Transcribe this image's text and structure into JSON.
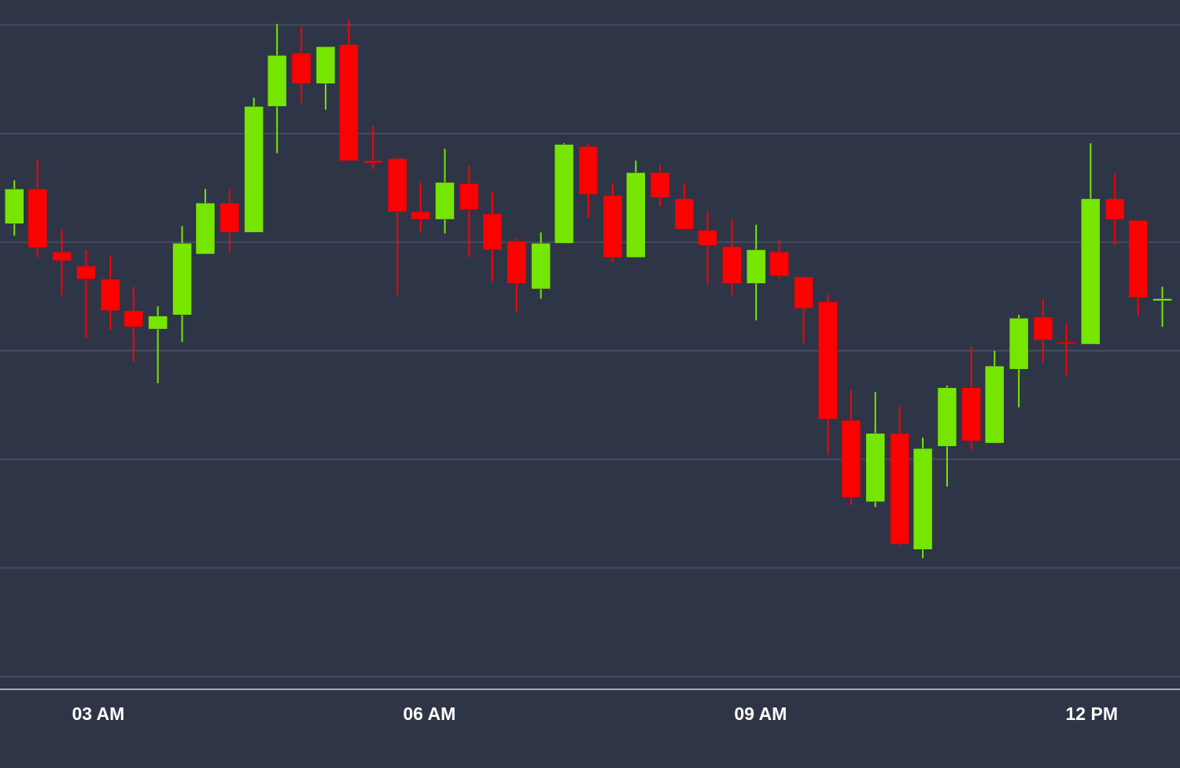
{
  "chart_data": {
    "type": "candlestick",
    "x": [
      2.24,
      2.45,
      2.67,
      2.89,
      3.11,
      3.32,
      3.54,
      3.76,
      3.97,
      4.19,
      4.41,
      4.62,
      4.84,
      5.06,
      5.27,
      5.49,
      5.71,
      5.92,
      6.14,
      6.36,
      6.57,
      6.79,
      7.01,
      7.22,
      7.44,
      7.66,
      7.87,
      8.09,
      8.31,
      8.52,
      8.74,
      8.96,
      9.17,
      9.39,
      9.61,
      9.82,
      10.04,
      10.26,
      10.47,
      10.69,
      10.91,
      11.12,
      11.34,
      11.56,
      11.77,
      11.99,
      12.21,
      12.42,
      12.64
    ],
    "open": [
      417,
      449,
      391,
      378,
      366,
      337,
      320,
      333,
      389,
      436,
      409,
      525,
      574,
      546,
      582,
      475,
      477,
      428,
      421,
      454,
      426,
      401,
      357,
      399,
      488,
      443,
      386,
      464,
      440,
      411,
      396,
      362,
      391,
      368,
      345,
      236,
      161,
      224,
      117,
      212,
      266,
      215,
      283,
      331,
      308,
      306,
      440,
      420,
      346
    ],
    "high": [
      457,
      476,
      412,
      393,
      388,
      359,
      341,
      415,
      449,
      449,
      533,
      601,
      599,
      580,
      605,
      507,
      478,
      455,
      486,
      470,
      446,
      404,
      409,
      491,
      491,
      454,
      475,
      471,
      453,
      428,
      421,
      416,
      402,
      368,
      353,
      264,
      262,
      250,
      220,
      268,
      304,
      300,
      333,
      348,
      325,
      491,
      463,
      420,
      359
    ],
    "low": [
      406,
      386,
      351,
      312,
      319,
      290,
      270,
      308,
      389,
      391,
      409,
      482,
      528,
      522,
      475,
      467,
      351,
      409,
      408,
      386,
      364,
      336,
      348,
      399,
      422,
      382,
      386,
      433,
      412,
      361,
      351,
      328,
      366,
      307,
      204,
      158,
      156,
      120,
      109,
      175,
      209,
      215,
      248,
      289,
      277,
      306,
      397,
      332,
      322
    ],
    "close": [
      449,
      395,
      383,
      366,
      337,
      322,
      332,
      399,
      436,
      409,
      525,
      572,
      546,
      580,
      475,
      473,
      428,
      421,
      455,
      430,
      393,
      362,
      399,
      490,
      444,
      386,
      464,
      441,
      412,
      397,
      362,
      393,
      369,
      339,
      237,
      165,
      224,
      122,
      210,
      266,
      217,
      286,
      330,
      310,
      307,
      440,
      421,
      349,
      348
    ],
    "up_color": "#76e600",
    "down_color": "#ff0000",
    "xlim": [
      2.11,
      12.8
    ],
    "xticks": [
      {
        "value": 3,
        "label": "03 AM"
      },
      {
        "value": 6,
        "label": "06 AM"
      },
      {
        "value": 9,
        "label": "09 AM"
      },
      {
        "value": 12,
        "label": "12 PM"
      }
    ],
    "ylim": [
      -11,
      623
    ],
    "yticks": [
      0,
      100,
      200,
      300,
      400,
      500,
      600
    ],
    "grid": true
  }
}
